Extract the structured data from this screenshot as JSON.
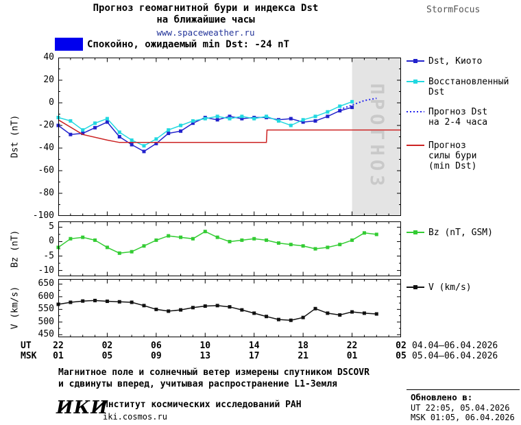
{
  "header": {
    "title_line1": "Прогноз геомагнитной бури и индекса Dst",
    "title_line2": "на ближайшие часы",
    "site": "www.spaceweather.ru",
    "brand": "StormFocus"
  },
  "banner": {
    "text": "Спокойно, ожидаемый min Dst: -24 nT",
    "color": "#0000ee"
  },
  "legend": {
    "kyoto": [
      "Dst, Киото"
    ],
    "restored": [
      "Восстановленный",
      "Dst"
    ],
    "forecast": [
      "Прогноз Dst",
      "на 2-4 часа"
    ],
    "storm": [
      "Прогноз",
      "силы бури",
      "(min Dst)"
    ],
    "bz": [
      "Bz (nT, GSM)"
    ],
    "v": [
      "V (km/s)"
    ]
  },
  "x_axis": {
    "ut_label": "UT",
    "msk_label": "MSK",
    "tick_hours": [
      0,
      4,
      8,
      12,
      16,
      20,
      24,
      28
    ],
    "ut_ticks": [
      "22",
      "02",
      "06",
      "10",
      "14",
      "18",
      "22",
      "02"
    ],
    "msk_ticks": [
      "01",
      "05",
      "09",
      "13",
      "17",
      "21",
      "01",
      "05"
    ],
    "ut_range": "04.04–06.04.2026",
    "msk_range": "05.04–06.04.2026"
  },
  "footer": {
    "note_line1": "Магнитное поле и солнечный ветер измерены спутником DSCOVR",
    "note_line2": "и сдвинуты вперед, учитывая распространение L1-Земля",
    "logo": "ИКИ",
    "institute": "Институт космических исследований РАН",
    "site": "iki.cosmos.ru",
    "updated_label": "Обновлено в:",
    "updated_ut": "UT  22:05, 05.04.2026",
    "updated_msk": "MSK 01:05, 06.04.2026"
  },
  "chart_data": [
    {
      "type": "line",
      "ylabel": "Dst (nT)",
      "ylim": [
        -100,
        40
      ],
      "yticks": [
        40,
        20,
        0,
        -20,
        -40,
        -60,
        -80,
        -100
      ],
      "ytick_minor_step": 10,
      "xlim": [
        0,
        28
      ],
      "xticks": [
        0,
        4,
        8,
        12,
        16,
        20,
        24,
        28
      ],
      "xtick_minor_step": 1,
      "forecast_region": {
        "x_start": 24,
        "x_end": 28,
        "label": "ПРОГНОЗ",
        "color": "#e4e4e4",
        "label_color": "#c9c9c9"
      },
      "series": [
        {
          "name": "Dst, Киото",
          "color": "#2222cc",
          "style": "solid",
          "marker": "square",
          "x_start": 0,
          "x_step": 1,
          "values": [
            -20,
            -28,
            -27,
            -22,
            -17,
            -30,
            -37,
            -43,
            -36,
            -27,
            -25,
            -18,
            -13,
            -15,
            -12,
            -14,
            -13,
            -13,
            -15,
            -14,
            -17,
            -16,
            -12,
            -7,
            -4
          ]
        },
        {
          "name": "Восстановленный Dst",
          "color": "#22d8e0",
          "style": "solid",
          "marker": "square",
          "x_start": 0,
          "x_step": 1,
          "values": [
            -13,
            -16,
            -24,
            -18,
            -14,
            -26,
            -33,
            -38,
            -32,
            -24,
            -20,
            -16,
            -14,
            -12,
            -14,
            -12,
            -14,
            -12,
            -16,
            -20,
            -15,
            -12,
            -8,
            -3,
            1
          ]
        },
        {
          "name": "Прогноз Dst на 2-4 часа",
          "color": "#2222ee",
          "style": "dotted",
          "marker": "none",
          "x": [
            23,
            24,
            25,
            26
          ],
          "values": [
            -6,
            -2,
            2,
            4
          ]
        },
        {
          "name": "Прогноз силы бури (min Dst)",
          "color": "#cc2222",
          "style": "solid",
          "marker": "none",
          "x": [
            0,
            2,
            4,
            5,
            17,
            17.05,
            28
          ],
          "values": [
            -15,
            -28,
            -33,
            -35,
            -35,
            -24,
            -24
          ]
        }
      ]
    },
    {
      "type": "line",
      "ylabel": "Bz (nT)",
      "ylim": [
        -12,
        7
      ],
      "yticks": [
        5,
        0,
        -5,
        -10
      ],
      "ytick_minor_step": 2.5,
      "xlim": [
        0,
        28
      ],
      "xticks": [
        0,
        4,
        8,
        12,
        16,
        20,
        24,
        28
      ],
      "xtick_minor_step": 1,
      "series": [
        {
          "name": "Bz (nT, GSM)",
          "color": "#33cc33",
          "style": "solid",
          "marker": "square",
          "x_start": 0,
          "x_step": 1,
          "values": [
            -2,
            1,
            1.5,
            0.5,
            -2,
            -4,
            -3.5,
            -1.5,
            0.5,
            2,
            1.5,
            1,
            3.5,
            1.5,
            0,
            0.5,
            1,
            0.5,
            -0.5,
            -1,
            -1.5,
            -2.5,
            -2,
            -1,
            0.5,
            3,
            2.5
          ]
        }
      ]
    },
    {
      "type": "line",
      "ylabel": "V (km/s)",
      "ylim": [
        440,
        670
      ],
      "yticks": [
        650,
        600,
        550,
        500,
        450
      ],
      "ytick_minor_step": 25,
      "xlim": [
        0,
        28
      ],
      "xticks": [
        0,
        4,
        8,
        12,
        16,
        20,
        24,
        28
      ],
      "xtick_minor_step": 1,
      "series": [
        {
          "name": "V (km/s)",
          "color": "#111111",
          "style": "solid",
          "marker": "square",
          "x_start": 0,
          "x_step": 1,
          "values": [
            570,
            578,
            583,
            585,
            582,
            580,
            578,
            565,
            550,
            543,
            548,
            557,
            563,
            565,
            560,
            548,
            535,
            522,
            510,
            507,
            518,
            553,
            535,
            528,
            540,
            535,
            532
          ]
        }
      ]
    }
  ]
}
